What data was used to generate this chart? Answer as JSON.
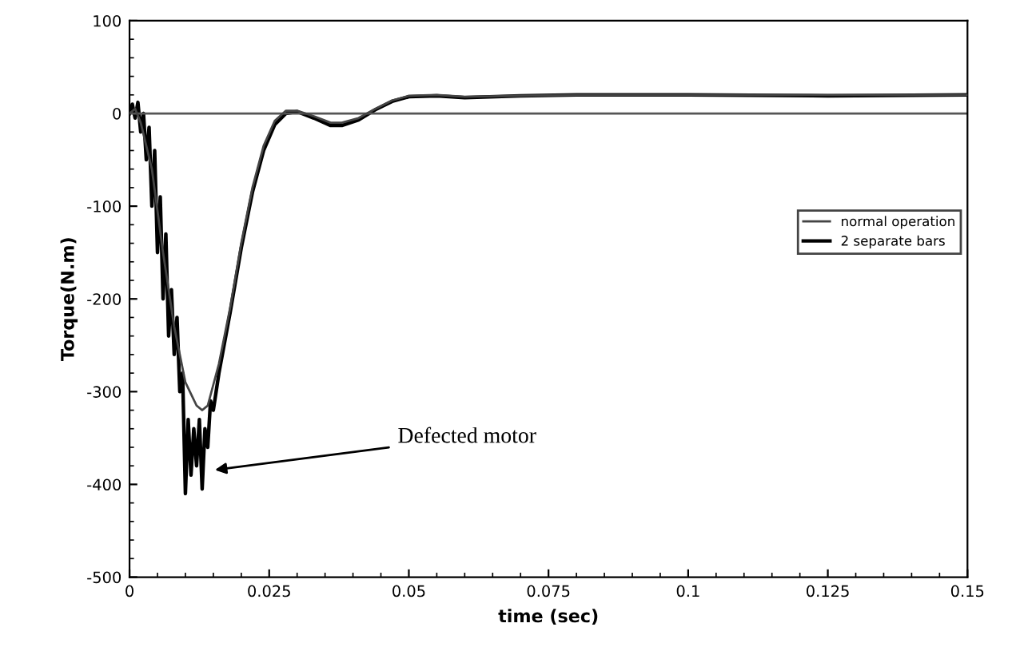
{
  "chart_data": {
    "type": "line",
    "xlabel": "time (sec)",
    "ylabel": "Torque(N.m)",
    "xlim": [
      0,
      0.15
    ],
    "ylim": [
      -500,
      100
    ],
    "xticks": [
      0,
      {
        "value": 0.025,
        "label": "0.025"
      },
      {
        "value": 0.05,
        "label": "0.05"
      },
      {
        "value": 0.075,
        "label": "0.075"
      },
      {
        "value": 0.1,
        "label": "0.1"
      },
      {
        "value": 0.125,
        "label": "0.125"
      },
      {
        "value": 0.15,
        "label": "0.15"
      }
    ],
    "yticks": [
      -500,
      -400,
      -300,
      -200,
      -100,
      0,
      100
    ],
    "grid": false,
    "legend": "center right",
    "line_style": "solid",
    "marker": "none",
    "ref_lines": [
      {
        "axis": "y",
        "value": 0,
        "color": "#555555"
      }
    ],
    "annotations": [
      {
        "text": "Defected motor",
        "x": 0.0145,
        "y": -385
      }
    ],
    "series": [
      {
        "name": "normal operation",
        "color": "#444444",
        "x": [
          0,
          0.001,
          0.002,
          0.004,
          0.006,
          0.008,
          0.01,
          0.012,
          0.013,
          0.014,
          0.016,
          0.018,
          0.02,
          0.022,
          0.024,
          0.026,
          0.028,
          0.03,
          0.033,
          0.036,
          0.038,
          0.041,
          0.044,
          0.047,
          0.05,
          0.055,
          0.06,
          0.07,
          0.08,
          0.1,
          0.125,
          0.15
        ],
        "values": [
          0,
          5,
          -10,
          -60,
          -150,
          -230,
          -290,
          -315,
          -320,
          -315,
          -270,
          -210,
          -140,
          -80,
          -35,
          -8,
          3,
          3,
          -3,
          -10,
          -10,
          -5,
          5,
          14,
          19,
          20,
          18,
          19,
          20,
          20,
          20,
          20
        ]
      },
      {
        "name": "2 separate bars",
        "color": "#000000",
        "x": [
          0,
          0.0005,
          0.001,
          0.0015,
          0.002,
          0.0025,
          0.003,
          0.0035,
          0.004,
          0.0045,
          0.005,
          0.0055,
          0.006,
          0.0065,
          0.007,
          0.0075,
          0.008,
          0.0085,
          0.009,
          0.0095,
          0.01,
          0.0105,
          0.011,
          0.0115,
          0.012,
          0.0125,
          0.013,
          0.0135,
          0.014,
          0.0145,
          0.015,
          0.016,
          0.018,
          0.02,
          0.022,
          0.024,
          0.026,
          0.028,
          0.03,
          0.033,
          0.036,
          0.038,
          0.041,
          0.044,
          0.047,
          0.05,
          0.055,
          0.06,
          0.07,
          0.08,
          0.1,
          0.125,
          0.15
        ],
        "values": [
          0,
          10,
          -5,
          12,
          -20,
          0,
          -50,
          -15,
          -100,
          -40,
          -150,
          -90,
          -200,
          -130,
          -240,
          -190,
          -260,
          -220,
          -300,
          -280,
          -410,
          -330,
          -390,
          -340,
          -380,
          -330,
          -405,
          -340,
          -360,
          -310,
          -320,
          -280,
          -215,
          -145,
          -85,
          -40,
          -12,
          0,
          2,
          -5,
          -13,
          -13,
          -7,
          4,
          13,
          18,
          19,
          17,
          19,
          20,
          20,
          19,
          20
        ]
      }
    ]
  }
}
